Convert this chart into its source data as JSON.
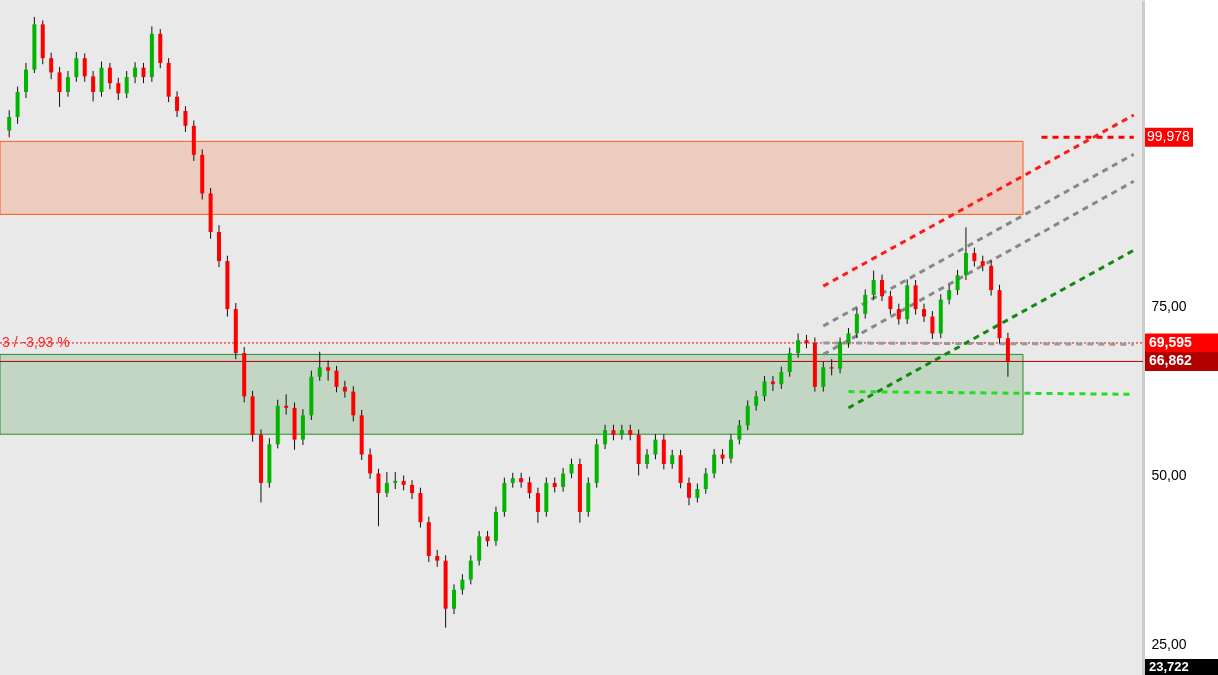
{
  "chart_data": {
    "type": "candlestick",
    "categories": [
      null,
      null,
      null,
      null,
      null,
      null,
      null,
      null,
      null,
      null,
      null,
      null,
      null,
      null,
      null,
      null,
      null,
      null,
      null,
      null,
      null,
      null,
      null,
      null,
      null,
      null,
      null,
      null,
      null,
      null,
      null,
      null,
      null,
      null,
      null,
      null,
      null,
      null,
      null,
      null,
      null,
      null,
      null,
      null,
      null,
      null,
      null,
      null,
      null,
      null,
      null,
      null,
      null,
      null,
      null,
      null,
      null,
      null,
      null,
      null,
      null,
      null,
      null,
      null,
      null,
      null,
      null,
      null,
      null,
      null,
      null,
      null,
      null,
      null,
      null,
      null,
      null,
      null,
      null,
      null,
      null,
      null,
      null,
      null,
      null,
      null,
      null,
      null,
      null,
      null,
      null,
      null,
      null,
      null,
      null,
      null,
      null,
      null,
      null,
      null,
      null,
      null,
      null,
      null,
      null,
      null,
      null,
      null,
      null,
      null,
      null,
      null,
      null,
      null,
      null,
      null,
      null,
      null,
      null,
      null,
      null,
      null,
      null,
      null,
      null,
      null,
      null,
      null,
      null,
      null,
      null,
      null,
      null,
      null,
      null
    ],
    "ohlc": [
      [
        101.0,
        104.0,
        100.0,
        103.0
      ],
      [
        103.0,
        107.5,
        102.0,
        106.7
      ],
      [
        106.7,
        111.0,
        105.8,
        110.0
      ],
      [
        110.0,
        117.8,
        109.5,
        116.7
      ],
      [
        116.7,
        117.3,
        110.8,
        111.7
      ],
      [
        111.7,
        112.5,
        108.6,
        109.6
      ],
      [
        109.6,
        110.4,
        104.5,
        106.7
      ],
      [
        106.7,
        109.8,
        106.0,
        108.9
      ],
      [
        108.9,
        112.6,
        108.2,
        111.7
      ],
      [
        111.7,
        112.4,
        108.2,
        109.0
      ],
      [
        109.0,
        109.8,
        105.3,
        106.7
      ],
      [
        106.7,
        111.2,
        106.0,
        110.3
      ],
      [
        110.3,
        111.0,
        107.1,
        108.0
      ],
      [
        108.0,
        108.8,
        105.5,
        106.5
      ],
      [
        106.5,
        109.8,
        105.8,
        108.9
      ],
      [
        108.9,
        111.1,
        108.0,
        110.3
      ],
      [
        110.3,
        111.0,
        108.0,
        108.9
      ],
      [
        108.9,
        116.4,
        108.2,
        115.3
      ],
      [
        115.3,
        116.0,
        110.2,
        111.0
      ],
      [
        111.0,
        111.7,
        105.2,
        106.0
      ],
      [
        106.0,
        106.8,
        103.0,
        103.9
      ],
      [
        103.9,
        104.6,
        100.8,
        101.7
      ],
      [
        101.7,
        102.5,
        96.5,
        97.4
      ],
      [
        97.4,
        98.2,
        90.8,
        91.7
      ],
      [
        91.7,
        92.5,
        85.0,
        86.0
      ],
      [
        86.0,
        87.0,
        80.8,
        81.7
      ],
      [
        81.7,
        82.5,
        73.5,
        74.6
      ],
      [
        74.6,
        75.5,
        67.2,
        68.1
      ],
      [
        68.1,
        69.0,
        60.8,
        61.7
      ],
      [
        61.7,
        62.5,
        55.0,
        56.0
      ],
      [
        56.0,
        56.8,
        46.0,
        48.9
      ],
      [
        48.9,
        55.5,
        48.2,
        54.6
      ],
      [
        54.6,
        61.2,
        54.0,
        60.3
      ],
      [
        60.3,
        62.0,
        59.0,
        60.0
      ],
      [
        60.0,
        60.8,
        53.8,
        55.3
      ],
      [
        55.3,
        59.8,
        54.5,
        58.9
      ],
      [
        58.9,
        65.5,
        58.2,
        64.6
      ],
      [
        64.6,
        68.3,
        64.0,
        66.0
      ],
      [
        66.0,
        67.0,
        64.0,
        65.5
      ],
      [
        65.5,
        66.2,
        62.3,
        63.1
      ],
      [
        63.1,
        64.0,
        61.5,
        62.4
      ],
      [
        62.4,
        63.2,
        58.0,
        58.9
      ],
      [
        58.9,
        59.7,
        52.3,
        53.1
      ],
      [
        53.1,
        54.0,
        49.5,
        50.3
      ],
      [
        50.3,
        51.0,
        42.5,
        47.4
      ],
      [
        47.4,
        50.5,
        46.8,
        48.9
      ],
      [
        48.9,
        50.5,
        48.0,
        49.2
      ],
      [
        49.2,
        50.0,
        47.8,
        48.6
      ],
      [
        48.6,
        49.3,
        46.5,
        47.4
      ],
      [
        47.4,
        48.2,
        42.3,
        43.1
      ],
      [
        43.1,
        43.9,
        37.2,
        38.1
      ],
      [
        38.1,
        39.0,
        36.5,
        37.4
      ],
      [
        37.4,
        38.2,
        27.5,
        30.3
      ],
      [
        30.3,
        33.9,
        29.5,
        33.1
      ],
      [
        33.1,
        35.4,
        32.4,
        34.6
      ],
      [
        34.6,
        38.2,
        33.9,
        37.4
      ],
      [
        37.4,
        41.8,
        36.7,
        41.0
      ],
      [
        41.0,
        41.8,
        39.5,
        40.3
      ],
      [
        40.3,
        45.4,
        39.6,
        44.6
      ],
      [
        44.6,
        49.7,
        43.9,
        48.9
      ],
      [
        48.9,
        50.4,
        48.2,
        49.6
      ],
      [
        49.6,
        50.4,
        48.2,
        49.0
      ],
      [
        49.0,
        49.8,
        46.6,
        47.4
      ],
      [
        47.4,
        48.2,
        43.0,
        44.6
      ],
      [
        44.6,
        49.7,
        43.9,
        48.9
      ],
      [
        48.9,
        49.7,
        47.5,
        48.3
      ],
      [
        48.3,
        51.1,
        47.6,
        50.3
      ],
      [
        50.3,
        52.5,
        49.6,
        51.7
      ],
      [
        51.7,
        52.5,
        43.0,
        44.6
      ],
      [
        44.6,
        49.7,
        43.9,
        48.9
      ],
      [
        48.9,
        55.4,
        48.2,
        54.6
      ],
      [
        54.6,
        57.5,
        53.9,
        56.7
      ],
      [
        56.7,
        57.5,
        55.2,
        56.0
      ],
      [
        56.0,
        57.5,
        55.3,
        56.7
      ],
      [
        56.7,
        57.5,
        55.2,
        56.0
      ],
      [
        56.0,
        56.8,
        50.0,
        51.7
      ],
      [
        51.7,
        53.9,
        51.0,
        53.1
      ],
      [
        53.1,
        56.1,
        52.4,
        55.3
      ],
      [
        55.3,
        56.1,
        50.9,
        51.7
      ],
      [
        51.7,
        53.8,
        51.0,
        53.0
      ],
      [
        53.0,
        53.8,
        48.1,
        48.9
      ],
      [
        48.9,
        49.7,
        45.6,
        46.7
      ],
      [
        46.7,
        48.8,
        46.0,
        48.0
      ],
      [
        48.0,
        51.1,
        47.3,
        50.3
      ],
      [
        50.3,
        53.9,
        49.6,
        53.1
      ],
      [
        53.1,
        53.9,
        51.7,
        52.5
      ],
      [
        52.5,
        56.1,
        51.8,
        55.3
      ],
      [
        55.3,
        58.2,
        54.6,
        57.4
      ],
      [
        57.4,
        61.1,
        56.7,
        60.3
      ],
      [
        60.3,
        62.5,
        59.6,
        61.7
      ],
      [
        61.7,
        64.7,
        61.0,
        63.9
      ],
      [
        63.9,
        64.7,
        62.5,
        63.5
      ],
      [
        63.5,
        66.1,
        62.8,
        65.3
      ],
      [
        65.3,
        68.9,
        64.6,
        68.1
      ],
      [
        68.1,
        71.0,
        67.4,
        70.0
      ],
      [
        70.0,
        70.8,
        68.8,
        69.6
      ],
      [
        69.6,
        70.4,
        62.4,
        63.1
      ],
      [
        63.1,
        66.8,
        62.4,
        66.0
      ],
      [
        66.0,
        67.2,
        64.8,
        65.8
      ],
      [
        65.8,
        70.4,
        65.1,
        69.6
      ],
      [
        69.6,
        71.8,
        68.9,
        71.0
      ],
      [
        71.0,
        74.7,
        70.3,
        73.9
      ],
      [
        73.9,
        77.5,
        73.2,
        76.7
      ],
      [
        76.7,
        80.3,
        76.0,
        78.9
      ],
      [
        78.9,
        79.7,
        75.8,
        76.5
      ],
      [
        76.5,
        77.3,
        73.8,
        74.6
      ],
      [
        74.6,
        75.4,
        72.3,
        73.1
      ],
      [
        73.1,
        79.0,
        72.4,
        78.1
      ],
      [
        78.1,
        78.9,
        73.8,
        74.6
      ],
      [
        74.6,
        75.4,
        72.7,
        73.5
      ],
      [
        73.5,
        74.3,
        70.2,
        71.0
      ],
      [
        71.0,
        76.8,
        70.3,
        76.0
      ],
      [
        76.0,
        78.2,
        75.3,
        77.4
      ],
      [
        77.4,
        80.4,
        76.7,
        79.6
      ],
      [
        79.6,
        86.7,
        78.9,
        82.9
      ],
      [
        82.9,
        83.7,
        80.9,
        81.7
      ],
      [
        81.7,
        82.5,
        80.2,
        81.0
      ],
      [
        81.0,
        81.8,
        76.6,
        77.4
      ],
      [
        77.4,
        78.2,
        69.5,
        70.3
      ],
      [
        70.3,
        71.1,
        64.6,
        66.862
      ],
      null,
      null,
      null,
      null,
      null,
      null,
      null,
      null,
      null,
      null,
      null,
      null,
      null,
      null,
      null
    ],
    "series": [
      {
        "type": "line",
        "color": "#ff1a1a",
        "line_style": "dashed",
        "values": [
          null,
          null,
          null,
          null,
          null,
          null,
          null,
          null,
          null,
          null,
          null,
          null,
          null,
          null,
          null,
          null,
          null,
          null,
          null,
          null,
          null,
          null,
          null,
          null,
          null,
          null,
          null,
          null,
          null,
          null,
          null,
          null,
          null,
          null,
          null,
          null,
          null,
          null,
          null,
          null,
          null,
          null,
          null,
          null,
          null,
          null,
          null,
          null,
          null,
          null,
          null,
          null,
          null,
          null,
          null,
          null,
          null,
          null,
          null,
          null,
          null,
          null,
          null,
          null,
          null,
          null,
          null,
          null,
          null,
          null,
          null,
          null,
          null,
          null,
          null,
          null,
          null,
          null,
          null,
          null,
          null,
          null,
          null,
          null,
          null,
          null,
          null,
          null,
          null,
          null,
          null,
          null,
          null,
          null,
          null,
          null,
          null,
          78.0,
          null,
          null,
          null,
          null,
          null,
          null,
          null,
          null,
          null,
          null,
          null,
          null,
          null,
          null,
          null,
          null,
          null,
          null,
          null,
          null,
          null,
          null,
          null,
          null,
          null,
          null,
          null,
          null,
          null,
          null,
          null,
          null,
          null,
          null,
          null,
          null,
          103.3
        ]
      },
      {
        "type": "line",
        "color": "#888888",
        "line_style": "dashed",
        "values": [
          null,
          null,
          null,
          null,
          null,
          null,
          null,
          null,
          null,
          null,
          null,
          null,
          null,
          null,
          null,
          null,
          null,
          null,
          null,
          null,
          null,
          null,
          null,
          null,
          null,
          null,
          null,
          null,
          null,
          null,
          null,
          null,
          null,
          null,
          null,
          null,
          null,
          null,
          null,
          null,
          null,
          null,
          null,
          null,
          null,
          null,
          null,
          null,
          null,
          null,
          null,
          null,
          null,
          null,
          null,
          null,
          null,
          null,
          null,
          null,
          null,
          null,
          null,
          null,
          null,
          null,
          null,
          null,
          null,
          null,
          null,
          null,
          null,
          null,
          null,
          null,
          null,
          null,
          null,
          null,
          null,
          null,
          null,
          null,
          null,
          null,
          null,
          null,
          null,
          null,
          null,
          null,
          null,
          null,
          null,
          null,
          null,
          72.1,
          null,
          null,
          null,
          null,
          null,
          null,
          null,
          null,
          null,
          null,
          null,
          null,
          null,
          null,
          null,
          null,
          null,
          null,
          null,
          null,
          null,
          null,
          null,
          null,
          null,
          null,
          null,
          null,
          null,
          null,
          null,
          null,
          null,
          null,
          null,
          null,
          97.5
        ]
      },
      {
        "type": "line",
        "color": "#888888",
        "line_style": "dashed",
        "values": [
          null,
          null,
          null,
          null,
          null,
          null,
          null,
          null,
          null,
          null,
          null,
          null,
          null,
          null,
          null,
          null,
          null,
          null,
          null,
          null,
          null,
          null,
          null,
          null,
          null,
          null,
          null,
          null,
          null,
          null,
          null,
          null,
          null,
          null,
          null,
          null,
          null,
          null,
          null,
          null,
          null,
          null,
          null,
          null,
          null,
          null,
          null,
          null,
          null,
          null,
          null,
          null,
          null,
          null,
          null,
          null,
          null,
          null,
          null,
          null,
          null,
          null,
          null,
          null,
          null,
          null,
          null,
          null,
          null,
          null,
          null,
          null,
          null,
          null,
          null,
          null,
          null,
          null,
          null,
          null,
          null,
          null,
          null,
          null,
          null,
          null,
          null,
          null,
          null,
          null,
          null,
          null,
          null,
          null,
          null,
          null,
          null,
          67.9,
          null,
          null,
          null,
          null,
          null,
          null,
          null,
          null,
          null,
          null,
          null,
          null,
          null,
          null,
          null,
          null,
          null,
          null,
          null,
          null,
          null,
          null,
          null,
          null,
          null,
          null,
          null,
          null,
          null,
          null,
          null,
          null,
          null,
          null,
          null,
          null,
          93.5
        ]
      },
      {
        "type": "line",
        "color": "#999999",
        "line_style": "dashed",
        "values": [
          null,
          null,
          null,
          null,
          null,
          null,
          null,
          null,
          null,
          null,
          null,
          null,
          null,
          null,
          null,
          null,
          null,
          null,
          null,
          null,
          null,
          null,
          null,
          null,
          null,
          null,
          null,
          null,
          null,
          null,
          null,
          null,
          null,
          null,
          null,
          null,
          null,
          null,
          null,
          null,
          null,
          null,
          null,
          null,
          null,
          null,
          null,
          null,
          null,
          null,
          null,
          null,
          null,
          null,
          null,
          null,
          null,
          null,
          null,
          null,
          null,
          null,
          null,
          null,
          null,
          null,
          null,
          null,
          null,
          null,
          null,
          null,
          null,
          null,
          null,
          null,
          null,
          null,
          null,
          null,
          null,
          null,
          null,
          null,
          null,
          null,
          null,
          null,
          null,
          null,
          null,
          null,
          null,
          null,
          null,
          null,
          null,
          69.6,
          null,
          null,
          null,
          null,
          null,
          null,
          null,
          null,
          null,
          null,
          null,
          null,
          null,
          null,
          null,
          null,
          null,
          null,
          null,
          null,
          null,
          null,
          null,
          null,
          null,
          null,
          null,
          null,
          null,
          null,
          null,
          null,
          null,
          null,
          null,
          null,
          69.4
        ]
      },
      {
        "type": "line",
        "color": "#118811",
        "line_style": "dashed",
        "values": [
          null,
          null,
          null,
          null,
          null,
          null,
          null,
          null,
          null,
          null,
          null,
          null,
          null,
          null,
          null,
          null,
          null,
          null,
          null,
          null,
          null,
          null,
          null,
          null,
          null,
          null,
          null,
          null,
          null,
          null,
          null,
          null,
          null,
          null,
          null,
          null,
          null,
          null,
          null,
          null,
          null,
          null,
          null,
          null,
          null,
          null,
          null,
          null,
          null,
          null,
          null,
          null,
          null,
          null,
          null,
          null,
          null,
          null,
          null,
          null,
          null,
          null,
          null,
          null,
          null,
          null,
          null,
          null,
          null,
          null,
          null,
          null,
          null,
          null,
          null,
          null,
          null,
          null,
          null,
          null,
          null,
          null,
          null,
          null,
          null,
          null,
          null,
          null,
          null,
          null,
          null,
          null,
          null,
          null,
          null,
          null,
          null,
          null,
          null,
          null,
          60.0,
          null,
          null,
          null,
          null,
          null,
          null,
          null,
          null,
          null,
          null,
          null,
          null,
          null,
          null,
          null,
          null,
          null,
          null,
          null,
          null,
          null,
          null,
          null,
          null,
          null,
          null,
          null,
          null,
          null,
          null,
          null,
          null,
          null,
          83.3
        ]
      },
      {
        "type": "line",
        "color": "#22dd22",
        "line_style": "dashed",
        "values": [
          null,
          null,
          null,
          null,
          null,
          null,
          null,
          null,
          null,
          null,
          null,
          null,
          null,
          null,
          null,
          null,
          null,
          null,
          null,
          null,
          null,
          null,
          null,
          null,
          null,
          null,
          null,
          null,
          null,
          null,
          null,
          null,
          null,
          null,
          null,
          null,
          null,
          null,
          null,
          null,
          null,
          null,
          null,
          null,
          null,
          null,
          null,
          null,
          null,
          null,
          null,
          null,
          null,
          null,
          null,
          null,
          null,
          null,
          null,
          null,
          null,
          null,
          null,
          null,
          null,
          null,
          null,
          null,
          null,
          null,
          null,
          null,
          null,
          null,
          null,
          null,
          null,
          null,
          null,
          null,
          null,
          null,
          null,
          null,
          null,
          null,
          null,
          null,
          null,
          null,
          null,
          null,
          null,
          null,
          null,
          null,
          null,
          null,
          null,
          null,
          62.4,
          null,
          null,
          null,
          null,
          null,
          null,
          null,
          null,
          null,
          null,
          null,
          null,
          null,
          null,
          null,
          null,
          null,
          null,
          null,
          null,
          null,
          null,
          null,
          null,
          null,
          null,
          null,
          null,
          null,
          null,
          null,
          null,
          null,
          62.0
        ]
      },
      {
        "type": "line",
        "name": "99,978",
        "color": "#ff0000",
        "line_style": "dashed",
        "values": [
          null,
          null,
          null,
          null,
          null,
          null,
          null,
          null,
          null,
          null,
          null,
          null,
          null,
          null,
          null,
          null,
          null,
          null,
          null,
          null,
          null,
          null,
          null,
          null,
          null,
          null,
          null,
          null,
          null,
          null,
          null,
          null,
          null,
          null,
          null,
          null,
          null,
          null,
          null,
          null,
          null,
          null,
          null,
          null,
          null,
          null,
          null,
          null,
          null,
          null,
          null,
          null,
          null,
          null,
          null,
          null,
          null,
          null,
          null,
          null,
          null,
          null,
          null,
          null,
          null,
          null,
          null,
          null,
          null,
          null,
          null,
          null,
          null,
          null,
          null,
          null,
          null,
          null,
          null,
          null,
          null,
          null,
          null,
          null,
          null,
          null,
          null,
          null,
          null,
          null,
          null,
          null,
          null,
          null,
          null,
          null,
          null,
          null,
          null,
          null,
          null,
          null,
          null,
          null,
          null,
          null,
          null,
          null,
          null,
          null,
          null,
          null,
          null,
          null,
          null,
          null,
          null,
          null,
          null,
          null,
          null,
          null,
          null,
          100.0,
          null,
          null,
          null,
          null,
          null,
          null,
          null,
          null,
          null,
          null,
          100.0
        ]
      }
    ],
    "ylim": [
      20.5,
      120.3
    ],
    "yticks": [
      {
        "value": 25,
        "label": "25,00"
      },
      {
        "value": 50,
        "label": "50,00"
      },
      {
        "value": 75,
        "label": "75,00"
      }
    ],
    "tick_labels": "y",
    "ref_lines": [
      {
        "axis": "y",
        "value": 69.595,
        "label": "69,595",
        "color": "#ff0000",
        "line_style": "dotted"
      },
      {
        "axis": "y",
        "value": 66.862,
        "label": "66,862",
        "color": "#b00000",
        "line_style": "solid"
      }
    ],
    "bands": [
      {
        "axis": "y",
        "from": 88.6,
        "to": 99.4,
        "color": "#ff5a1f"
      },
      {
        "axis": "y",
        "from": 56.1,
        "to": 67.9,
        "color": "#2e8b2e"
      }
    ],
    "annotations": [
      {
        "text": "3 / -3,93 %",
        "y": 69.595
      },
      "23,722"
    ]
  }
}
